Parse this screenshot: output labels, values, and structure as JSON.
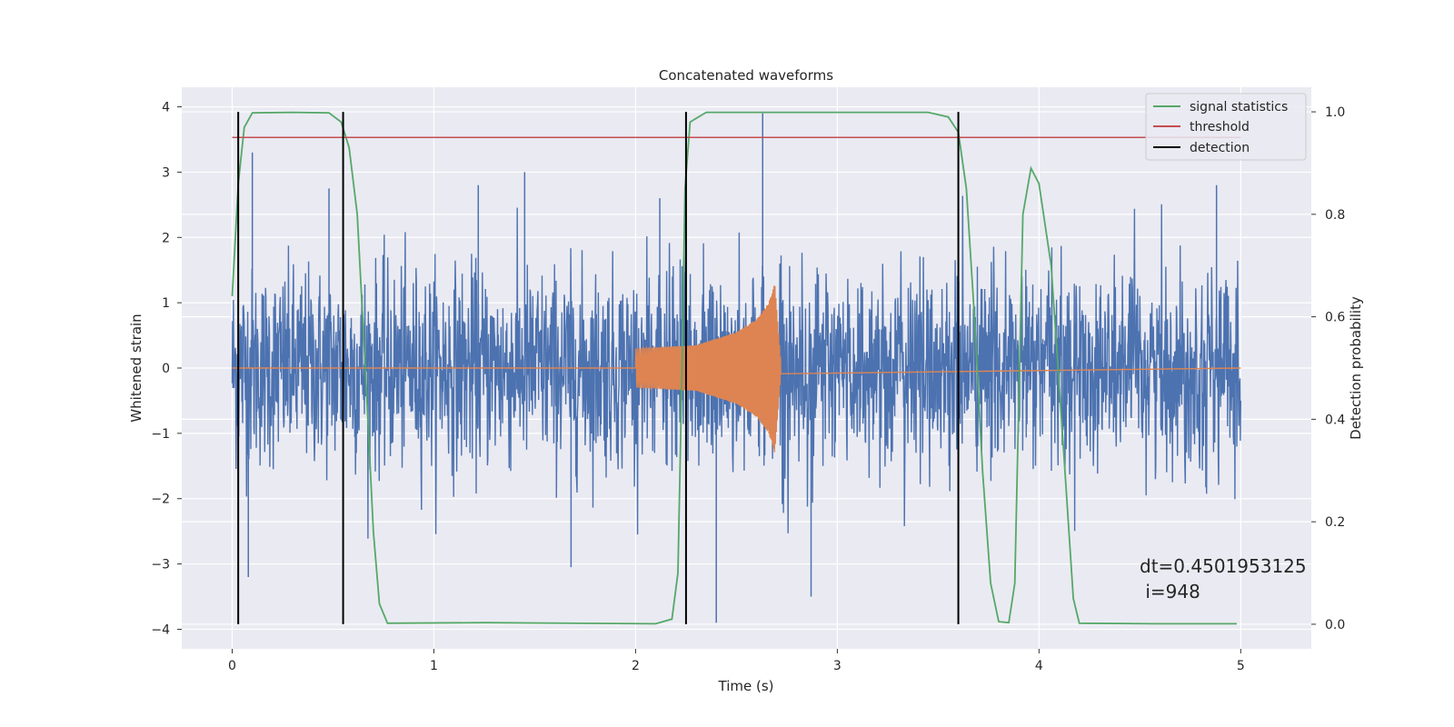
{
  "chart_data": {
    "type": "line",
    "title": "Concatenated waveforms",
    "xlabel": "Time (s)",
    "ylabel": "Whitened strain",
    "ylabel_right": "Detection probability",
    "xlim": [
      -0.25,
      5.35
    ],
    "ylim": [
      -4.3,
      4.3
    ],
    "ylim_right": [
      -0.048,
      1.048
    ],
    "xticks": [
      0,
      1,
      2,
      3,
      4,
      5
    ],
    "yticks": [
      -4,
      -3,
      -2,
      -1,
      0,
      1,
      2,
      3,
      4
    ],
    "yticks_right": [
      0.0,
      0.2,
      0.4,
      0.6,
      0.8,
      1.0
    ],
    "xtick_labels": [
      "0",
      "1",
      "2",
      "3",
      "4",
      "5"
    ],
    "ytick_labels": [
      "−4",
      "−3",
      "−2",
      "−1",
      "0",
      "1",
      "2",
      "3",
      "4"
    ],
    "ytick_right_labels": [
      "0.0",
      "0.2",
      "0.4",
      "0.6",
      "0.8",
      "1.0"
    ],
    "grid": true,
    "legend_position": "top-right",
    "legend": [
      {
        "name": "signal statistics",
        "color": "#55a868"
      },
      {
        "name": "threshold",
        "color": "#c44e52"
      },
      {
        "name": "detection",
        "color": "#000000"
      }
    ],
    "strain": {
      "color": "#4c72b0",
      "x_range": [
        0,
        5
      ],
      "typical_amplitude": 0.75,
      "extremes": [
        {
          "x": 0.08,
          "y": -3.2
        },
        {
          "x": 0.1,
          "y": 3.3
        },
        {
          "x": 0.48,
          "y": 2.75
        },
        {
          "x": 1.22,
          "y": 2.8
        },
        {
          "x": 1.45,
          "y": 3.0
        },
        {
          "x": 1.68,
          "y": -3.05
        },
        {
          "x": 2.12,
          "y": 2.6
        },
        {
          "x": 2.4,
          "y": -3.9
        },
        {
          "x": 2.63,
          "y": 3.9
        },
        {
          "x": 2.87,
          "y": -3.5
        },
        {
          "x": 4.88,
          "y": 2.8
        }
      ]
    },
    "injected_signal": {
      "color": "#dd8452",
      "x_range": [
        2.0,
        2.72
      ],
      "envelope": [
        {
          "x": 2.0,
          "y": 0.3
        },
        {
          "x": 2.3,
          "y": 0.35
        },
        {
          "x": 2.5,
          "y": 0.55
        },
        {
          "x": 2.6,
          "y": 0.75
        },
        {
          "x": 2.66,
          "y": 1.0
        },
        {
          "x": 2.69,
          "y": 1.3
        },
        {
          "x": 2.72,
          "y": 0.1
        }
      ]
    },
    "signal_statistics": {
      "axis": "right",
      "color": "#55a868",
      "points": [
        {
          "x": 0.0,
          "y": 0.64
        },
        {
          "x": 0.03,
          "y": 0.86
        },
        {
          "x": 0.06,
          "y": 0.97
        },
        {
          "x": 0.1,
          "y": 0.998
        },
        {
          "x": 0.3,
          "y": 0.999
        },
        {
          "x": 0.48,
          "y": 0.998
        },
        {
          "x": 0.54,
          "y": 0.98
        },
        {
          "x": 0.58,
          "y": 0.93
        },
        {
          "x": 0.62,
          "y": 0.8
        },
        {
          "x": 0.66,
          "y": 0.5
        },
        {
          "x": 0.7,
          "y": 0.18
        },
        {
          "x": 0.73,
          "y": 0.04
        },
        {
          "x": 0.77,
          "y": 0.002
        },
        {
          "x": 1.25,
          "y": 0.003
        },
        {
          "x": 2.1,
          "y": 0.001
        },
        {
          "x": 2.18,
          "y": 0.01
        },
        {
          "x": 2.21,
          "y": 0.1
        },
        {
          "x": 2.23,
          "y": 0.5
        },
        {
          "x": 2.245,
          "y": 0.85
        },
        {
          "x": 2.27,
          "y": 0.98
        },
        {
          "x": 2.35,
          "y": 0.999
        },
        {
          "x": 3.45,
          "y": 0.999
        },
        {
          "x": 3.55,
          "y": 0.99
        },
        {
          "x": 3.6,
          "y": 0.96
        },
        {
          "x": 3.64,
          "y": 0.85
        },
        {
          "x": 3.68,
          "y": 0.6
        },
        {
          "x": 3.72,
          "y": 0.3
        },
        {
          "x": 3.76,
          "y": 0.08
        },
        {
          "x": 3.8,
          "y": 0.005
        },
        {
          "x": 3.85,
          "y": 0.003
        },
        {
          "x": 3.88,
          "y": 0.08
        },
        {
          "x": 3.92,
          "y": 0.8
        },
        {
          "x": 3.96,
          "y": 0.89
        },
        {
          "x": 4.0,
          "y": 0.86
        },
        {
          "x": 4.06,
          "y": 0.7
        },
        {
          "x": 4.12,
          "y": 0.35
        },
        {
          "x": 4.17,
          "y": 0.05
        },
        {
          "x": 4.2,
          "y": 0.002
        },
        {
          "x": 4.6,
          "y": 0.001
        },
        {
          "x": 4.98,
          "y": 0.001
        }
      ]
    },
    "threshold": {
      "axis": "right",
      "value": 0.95,
      "x_range": [
        0,
        5
      ],
      "color": "#c44e52"
    },
    "detections": {
      "axis": "right",
      "color": "#000000",
      "x": [
        0.03,
        0.55,
        2.25,
        3.6
      ],
      "y_range": [
        0,
        1
      ]
    },
    "annotation": {
      "line1": "dt=0.4501953125",
      "line2": " i=948",
      "x": 4.5,
      "y": -3.0
    }
  }
}
